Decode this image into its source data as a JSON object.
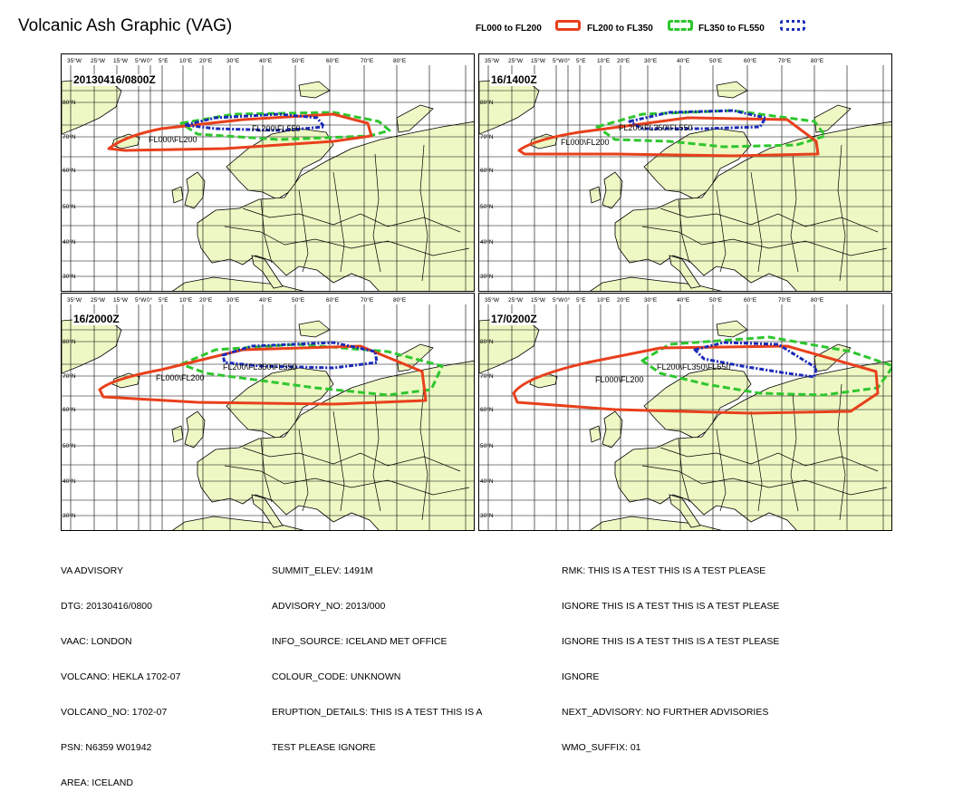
{
  "title": "Volcanic Ash Graphic (VAG)",
  "legend": [
    {
      "label": "FL000 to FL200",
      "color": "#e8401c",
      "style": "solid"
    },
    {
      "label": "FL200 to FL350",
      "color": "#2ec62e",
      "style": "dashed"
    },
    {
      "label": "FL350 to FL550",
      "color": "#1a2ab8",
      "style": "dotted"
    }
  ],
  "map": {
    "lon_labels": [
      "35°W",
      "25°W",
      "15°W",
      "5°W",
      "0°",
      "5°E",
      "10°E",
      "20°E",
      "30°E",
      "40°E",
      "50°E",
      "60°E",
      "70°E",
      "80°E"
    ],
    "lat_labels": [
      "80°N",
      "70°N",
      "60°N",
      "50°N",
      "40°N",
      "30°N"
    ],
    "land_color": "#eef8c4",
    "water_color": "#ffffff"
  },
  "panels": [
    {
      "time": "20130416/0800Z",
      "labels": [
        "FL000\\FL200",
        "FL200\\FL550"
      ]
    },
    {
      "time": "16/1400Z",
      "labels": [
        "FL000\\FL200",
        "FL200\\FL350\\FL550"
      ]
    },
    {
      "time": "16/2000Z",
      "labels": [
        "FL000\\FL200",
        "FL200\\FL350\\FL550"
      ]
    },
    {
      "time": "17/0200Z",
      "labels": [
        "FL000\\FL200",
        "FL200\\FL350\\FL550"
      ]
    }
  ],
  "info": {
    "col1": [
      "VA ADVISORY",
      "DTG: 20130416/0800",
      "VAAC: LONDON",
      "VOLCANO: HEKLA 1702-07",
      "VOLCANO_NO: 1702-07",
      "PSN: N6359 W01942",
      "AREA: ICELAND"
    ],
    "col2": [
      "SUMMIT_ELEV: 1491M",
      "ADVISORY_NO: 2013/000",
      "INFO_SOURCE: ICELAND MET OFFICE",
      "COLOUR_CODE: UNKNOWN",
      "ERUPTION_DETAILS: THIS IS A TEST THIS IS A",
      "TEST PLEASE IGNORE"
    ],
    "col3": [
      "RMK: THIS IS A TEST THIS IS A TEST PLEASE",
      "IGNORE THIS IS A TEST THIS IS A TEST PLEASE",
      "IGNORE THIS IS A TEST THIS IS A TEST PLEASE",
      "IGNORE",
      "NEXT_ADVISORY: NO FURTHER ADVISORIES",
      "WMO_SUFFIX: 01"
    ]
  }
}
